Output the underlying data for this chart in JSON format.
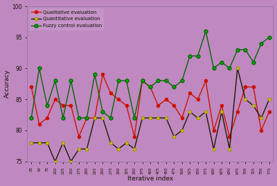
{
  "x_labels": [
    "25",
    "50",
    "75",
    "100",
    "125",
    "150",
    "175",
    "200",
    "225",
    "250",
    "275",
    "300",
    "325",
    "350",
    "375",
    "400",
    "425",
    "450",
    "475",
    "500",
    "525",
    "550",
    "575",
    "600",
    "625",
    "650",
    "675",
    "700",
    "725",
    "750",
    "775"
  ],
  "qualitative": [
    87,
    81,
    82,
    85,
    84,
    84,
    79,
    82,
    82,
    89,
    86,
    85,
    84,
    79,
    88,
    87,
    84,
    85,
    84,
    82,
    86,
    85,
    88,
    80,
    84,
    79,
    83,
    87,
    87,
    80,
    83
  ],
  "quantitative": [
    78,
    78,
    78,
    75,
    78,
    75,
    77,
    77,
    82,
    82,
    78,
    77,
    78,
    77,
    82,
    82,
    82,
    82,
    79,
    80,
    83,
    82,
    83,
    77,
    83,
    77,
    90,
    85,
    84,
    82,
    85
  ],
  "fuzzy": [
    82,
    90,
    84,
    88,
    82,
    88,
    82,
    82,
    89,
    83,
    82,
    88,
    88,
    82,
    88,
    87,
    88,
    88,
    87,
    88,
    92,
    92,
    96,
    90,
    91,
    90,
    93,
    93,
    91,
    94,
    95
  ],
  "qualitative_color": "#cc1100",
  "quantitative_line_color": "#1a1a00",
  "quantitative_marker_face": "#ccbb00",
  "quantitative_marker_edge": "#888800",
  "fuzzy_color": "#006600",
  "fuzzy_marker_color": "#00aa00",
  "bg_color": "#c088c0",
  "ylabel": "Accuracy",
  "xlabel": "Iterative index",
  "ylim": [
    75,
    100
  ],
  "yticks": [
    75,
    80,
    85,
    90,
    95,
    100
  ]
}
